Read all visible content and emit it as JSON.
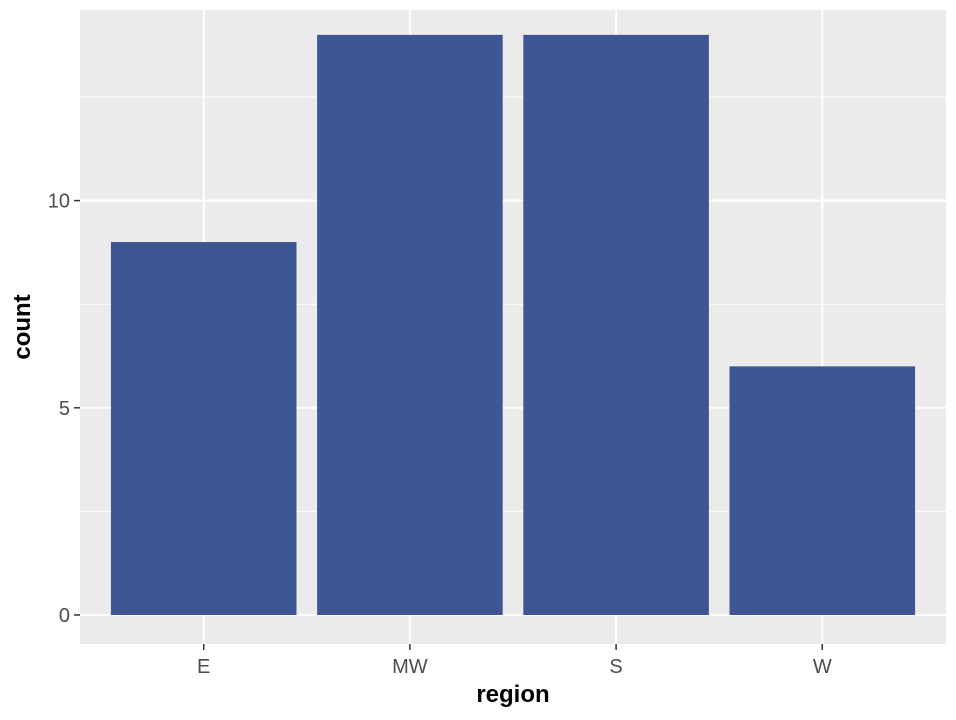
{
  "chart_data": {
    "type": "bar",
    "categories": [
      "E",
      "MW",
      "S",
      "W"
    ],
    "values": [
      9,
      14,
      14,
      6
    ],
    "xlabel": "region",
    "ylabel": "count",
    "ylim": [
      -0.7,
      14.6
    ],
    "y_ticks": [
      0,
      5,
      10
    ],
    "y_tick_labels": [
      "0",
      "5",
      "10"
    ],
    "y_minor_ticks": [
      2.5,
      7.5,
      12.5
    ],
    "grid": true,
    "legend": "none",
    "colors": {
      "bar": "#3e5693",
      "panel_background": "#ebebeb",
      "grid": "#ffffff",
      "tick_label": "#4d4d4d",
      "tick_mark": "#333333"
    }
  }
}
